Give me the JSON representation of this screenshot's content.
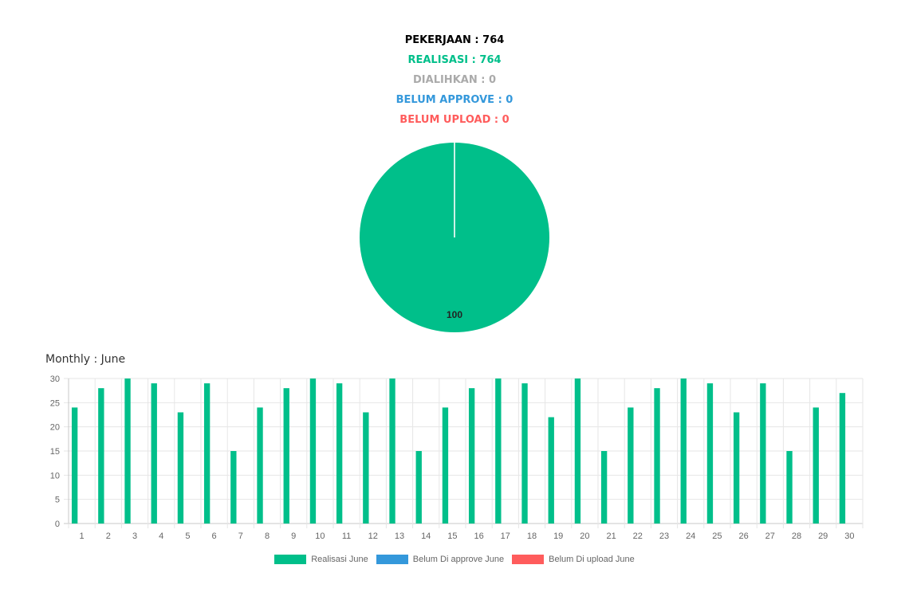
{
  "summary": {
    "pekerjaan": "PEKERJAAN : 764",
    "realisasi": "REALISASI : 764",
    "dialihkan": "DIALIHKAN : 0",
    "belum_approve": "BELUM APPROVE : 0",
    "belum_upload": "BELUM UPLOAD : 0"
  },
  "colors": {
    "pekerjaan": "#000000",
    "realisasi": "#00bf8a",
    "dialihkan": "#aaaaaa",
    "belum_approve": "#3498db",
    "belum_upload": "#ff5c5c"
  },
  "chart_data": [
    {
      "type": "pie",
      "slices": [
        {
          "value": 100,
          "color": "#00bf8a"
        },
        {
          "value": 0,
          "color": "#3498db"
        },
        {
          "value": 0,
          "color": "#ff5c5c"
        }
      ],
      "data_label": "100"
    },
    {
      "type": "bar",
      "title": "Monthly : June",
      "categories": [
        "1",
        "2",
        "3",
        "4",
        "5",
        "6",
        "7",
        "8",
        "9",
        "10",
        "11",
        "12",
        "13",
        "14",
        "15",
        "16",
        "17",
        "18",
        "19",
        "20",
        "21",
        "22",
        "23",
        "24",
        "25",
        "26",
        "27",
        "28",
        "29",
        "30"
      ],
      "series": [
        {
          "name": "Realisasi June",
          "color": "#00bf8a",
          "values": [
            24,
            28,
            30,
            29,
            23,
            29,
            15,
            24,
            28,
            30,
            29,
            23,
            30,
            15,
            24,
            28,
            30,
            29,
            22,
            30,
            15,
            24,
            28,
            30,
            29,
            23,
            29,
            15,
            24,
            27
          ]
        },
        {
          "name": "Belum Di approve June",
          "color": "#3498db",
          "values": [
            0,
            0,
            0,
            0,
            0,
            0,
            0,
            0,
            0,
            0,
            0,
            0,
            0,
            0,
            0,
            0,
            0,
            0,
            0,
            0,
            0,
            0,
            0,
            0,
            0,
            0,
            0,
            0,
            0,
            0
          ]
        },
        {
          "name": "Belum Di upload June",
          "color": "#ff5c5c",
          "values": [
            0,
            0,
            0,
            0,
            0,
            0,
            0,
            0,
            0,
            0,
            0,
            0,
            0,
            0,
            0,
            0,
            0,
            0,
            0,
            0,
            0,
            0,
            0,
            0,
            0,
            0,
            0,
            0,
            0,
            0
          ]
        }
      ],
      "ylim": [
        0,
        30
      ],
      "yticks": [
        0,
        5,
        10,
        15,
        20,
        25,
        30
      ],
      "grid": true,
      "legend_position": "bottom"
    }
  ]
}
